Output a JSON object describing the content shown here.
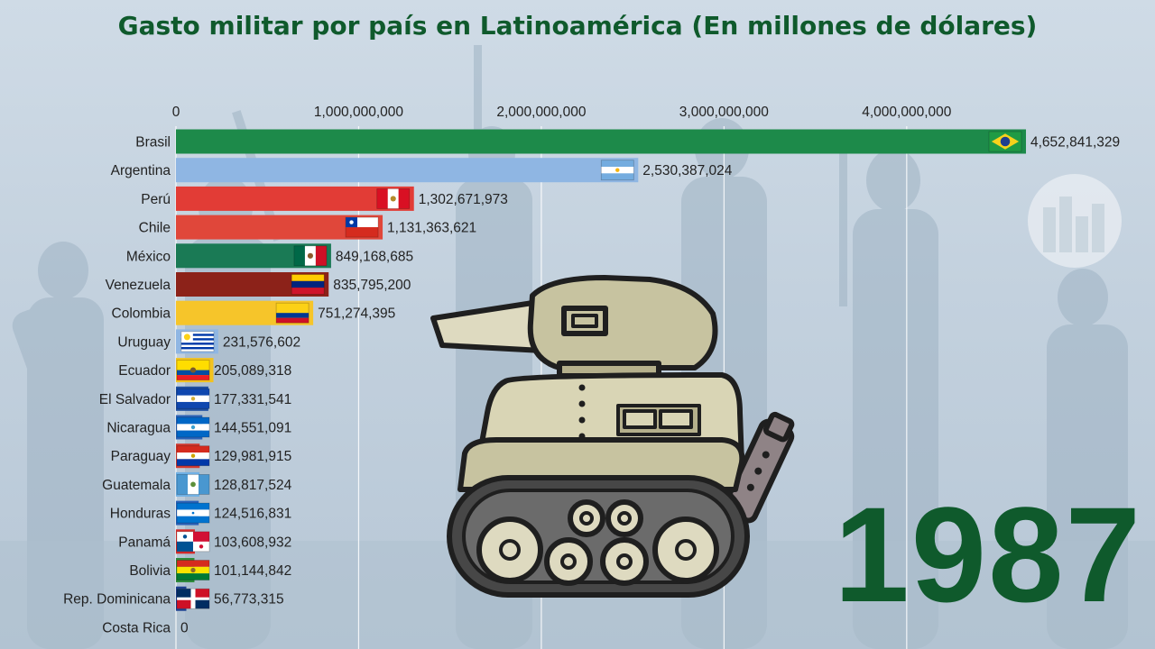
{
  "title": "Gasto militar por país en Latinoamérica (En millones de dólares)",
  "year": "1987",
  "chart_data": {
    "type": "bar",
    "orientation": "horizontal",
    "title": "Gasto militar por país en Latinoamérica (En millones de dólares)",
    "xlim": [
      0,
      4652841329
    ],
    "x_ticks": [
      {
        "value": 0,
        "label": "0"
      },
      {
        "value": 1000000000,
        "label": "1,000,000,000"
      },
      {
        "value": 2000000000,
        "label": "2,000,000,000"
      },
      {
        "value": 3000000000,
        "label": "3,000,000,000"
      },
      {
        "value": 4000000000,
        "label": "4,000,000,000"
      }
    ],
    "grid": true,
    "bars": [
      {
        "category": "Brasil",
        "value": 4652841329,
        "label": "4,652,841,329",
        "color": "#1d8a4a",
        "flag": "brazil-flag"
      },
      {
        "category": "Argentina",
        "value": 2530387024,
        "label": "2,530,387,024",
        "color": "#8fb6e3",
        "flag": "argentina-flag"
      },
      {
        "category": "Perú",
        "value": 1302671973,
        "label": "1,302,671,973",
        "color": "#e23c36",
        "flag": "peru-flag"
      },
      {
        "category": "Chile",
        "value": 1131363621,
        "label": "1,131,363,621",
        "color": "#e0473a",
        "flag": "chile-flag"
      },
      {
        "category": "México",
        "value": 849168685,
        "label": "849,168,685",
        "color": "#1a7a55",
        "flag": "mexico-flag"
      },
      {
        "category": "Venezuela",
        "value": 835795200,
        "label": "835,795,200",
        "color": "#8c2219",
        "flag": "venezuela-flag"
      },
      {
        "category": "Colombia",
        "value": 751274395,
        "label": "751,274,395",
        "color": "#f6c52a",
        "flag": "colombia-flag"
      },
      {
        "category": "Uruguay",
        "value": 231576602,
        "label": "231,576,602",
        "color": "#8fb6e3",
        "flag": "uruguay-flag"
      },
      {
        "category": "Ecuador",
        "value": 205089318,
        "label": "205,089,318",
        "color": "#f2c21e",
        "flag": "ecuador-flag"
      },
      {
        "category": "El Salvador",
        "value": 177331541,
        "label": "177,331,541",
        "color": "#1f4fa0",
        "flag": "el-salvador-flag"
      },
      {
        "category": "Nicaragua",
        "value": 144551091,
        "label": "144,551,091",
        "color": "#2b63b8",
        "flag": "nicaragua-flag"
      },
      {
        "category": "Paraguay",
        "value": 129981915,
        "label": "129,981,915",
        "color": "#d0392f",
        "flag": "paraguay-flag"
      },
      {
        "category": "Guatemala",
        "value": 128817524,
        "label": "128,817,524",
        "color": "#6fb0e4",
        "flag": "guatemala-flag"
      },
      {
        "category": "Honduras",
        "value": 124516831,
        "label": "124,516,831",
        "color": "#2a62b8",
        "flag": "honduras-flag"
      },
      {
        "category": "Panamá",
        "value": 103608932,
        "label": "103,608,932",
        "color": "#d42a2a",
        "flag": "panama-flag"
      },
      {
        "category": "Bolivia",
        "value": 101144842,
        "label": "101,144,842",
        "color": "#2e8b3a",
        "flag": "bolivia-flag"
      },
      {
        "category": "Rep. Dominicana",
        "value": 56773315,
        "label": "56,773,315",
        "color": "#1c3f8f",
        "flag": "dominican-republic-flag"
      },
      {
        "category": "Costa Rica",
        "value": 0,
        "label": "0",
        "color": "#1f3f8f",
        "flag": "costa-rica-flag"
      }
    ]
  },
  "colors": {
    "title": "#0f5a2c",
    "year": "#0f5a2c",
    "grid": "#ffffff",
    "label_text": "#222222"
  },
  "decorations": {
    "tank": "cartoon-tank-illustration",
    "logo": "watermark-logo-icon",
    "background": "soldier-silhouettes-background"
  }
}
